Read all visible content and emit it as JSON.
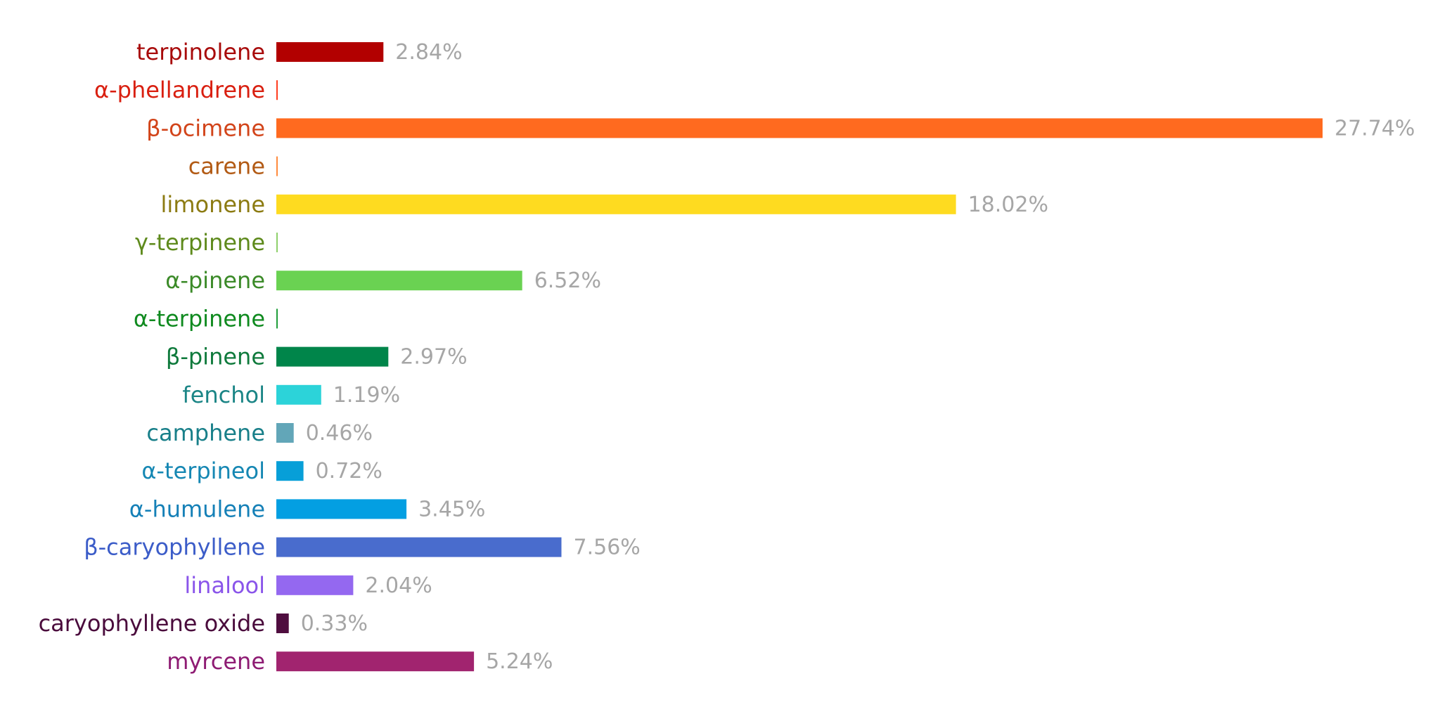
{
  "chart_data": {
    "type": "bar",
    "orientation": "horizontal",
    "title": "",
    "xlabel": "",
    "ylabel": "",
    "unit": "%",
    "xlim": [
      0,
      27.74
    ],
    "grid": false,
    "legend": "none",
    "categories": [
      "terpinolene",
      "α-phellandrene",
      "β-ocimene",
      "carene",
      "limonene",
      "γ-terpinene",
      "α-pinene",
      "α-terpinene",
      "β-pinene",
      "fenchol",
      "camphene",
      "α-terpineol",
      "α-humulene",
      "β-caryophyllene",
      "linalool",
      "caryophyllene oxide",
      "myrcene"
    ],
    "values": [
      2.84,
      0.02,
      27.74,
      0.02,
      18.02,
      0.02,
      6.52,
      0.02,
      2.97,
      1.19,
      0.46,
      0.72,
      3.45,
      7.56,
      2.04,
      0.33,
      5.24
    ],
    "value_labels": [
      "2.84%",
      "",
      "27.74%",
      "",
      "18.02%",
      "",
      "6.52%",
      "",
      "2.97%",
      "1.19%",
      "0.46%",
      "0.72%",
      "3.45%",
      "7.56%",
      "2.04%",
      "0.33%",
      "5.24%"
    ],
    "bar_colors": [
      "#b20000",
      "#ff3d1f",
      "#ff6a1f",
      "#ff8a3d",
      "#fedb20",
      "#8fd06b",
      "#6ad252",
      "#1f9e3a",
      "#00854a",
      "#2cd3d9",
      "#62a6b8",
      "#079fd8",
      "#039fe2",
      "#496ccd",
      "#9468f0",
      "#4f0d3f",
      "#a1246f"
    ],
    "label_colors": [
      "#a80a0a",
      "#d91f10",
      "#d2441a",
      "#b25a14",
      "#8c7b12",
      "#5e8a1c",
      "#3b8a28",
      "#0f8a1f",
      "#0f7a3c",
      "#1b8586",
      "#187f89",
      "#1587b3",
      "#1580b7",
      "#3b5cc8",
      "#8a55ea",
      "#4a0b3c",
      "#8e1b73"
    ]
  }
}
